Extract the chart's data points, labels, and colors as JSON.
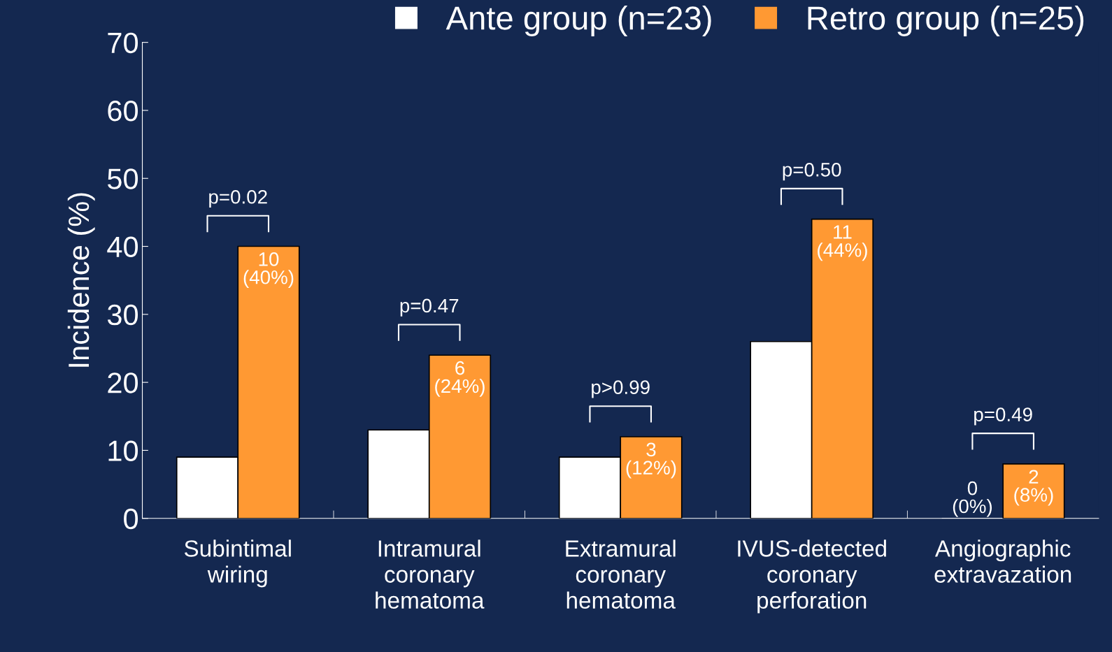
{
  "chart_data": {
    "type": "bar",
    "ylabel": "Incidence (%)",
    "categories": [
      "Subintimal\nwiring",
      "Intramural\ncoronary\nhematoma",
      "Extramural\ncoronary\nhematoma",
      "IVUS-detected\ncoronary\nperforation",
      "Angiographic\nextravazation"
    ],
    "series": [
      {
        "name": "Ante group (n=23)",
        "color": "#ffffff",
        "values": [
          9,
          13,
          9,
          26,
          0
        ],
        "value_labels": [
          null,
          null,
          null,
          null,
          "0\n(0%)"
        ]
      },
      {
        "name": "Retro group (n=25)",
        "color": "#ff9933",
        "values": [
          40,
          24,
          12,
          44,
          8
        ],
        "value_labels": [
          "10\n(40%)",
          "6\n(24%)",
          "3\n(12%)",
          "11\n(44%)",
          "2\n(8%)"
        ]
      }
    ],
    "annotations": [
      "p=0.02",
      "p=0.47",
      "p>0.99",
      "p=0.50",
      "p=0.49"
    ],
    "ylim": [
      0,
      70
    ],
    "yticks": [
      0,
      10,
      20,
      30,
      40,
      50,
      60,
      70
    ],
    "grid": false,
    "legend": "top right"
  }
}
